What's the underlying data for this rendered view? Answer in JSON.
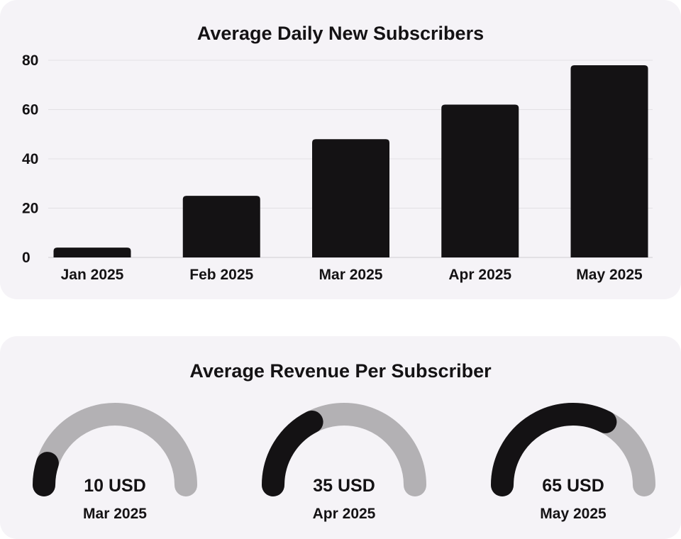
{
  "chart_data": [
    {
      "type": "bar",
      "title": "Average Daily New Subscribers",
      "categories": [
        "Jan 2025",
        "Feb 2025",
        "Mar 2025",
        "Apr 2025",
        "May 2025"
      ],
      "values": [
        4,
        25,
        48,
        62,
        78
      ],
      "ylim": [
        0,
        80
      ],
      "yticks": [
        0,
        20,
        40,
        60,
        80
      ],
      "grid": true,
      "color": "#141214"
    },
    {
      "type": "gauge",
      "title": "Average Revenue Per Subscriber",
      "range": [
        0,
        100
      ],
      "gauges": [
        {
          "label": "Mar 2025",
          "value": 10,
          "value_text": "10 USD"
        },
        {
          "label": "Apr 2025",
          "value": 35,
          "value_text": "35 USD"
        },
        {
          "label": "May 2025",
          "value": 65,
          "value_text": "65 USD"
        }
      ],
      "fill_color": "#141214",
      "track_color": "#b3b1b4"
    }
  ]
}
